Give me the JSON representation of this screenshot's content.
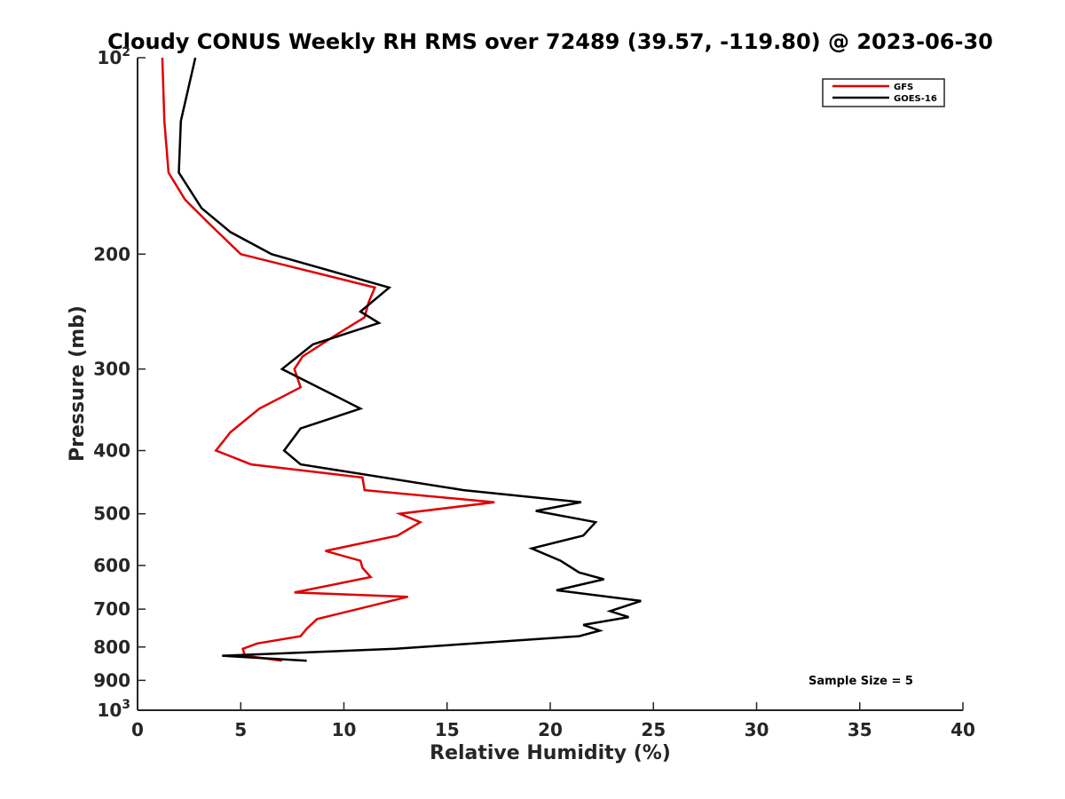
{
  "chart_data": {
    "type": "line",
    "title": "Cloudy CONUS Weekly RH RMS over 72489 (39.57, -119.80) @ 2023-06-30",
    "xlabel": "Relative Humidity (%)",
    "ylabel": "Pressure (mb)",
    "xlim": [
      0,
      40
    ],
    "ylim": [
      100,
      1000
    ],
    "yscale": "log",
    "y_reversed": true,
    "grid": false,
    "legend_position": "top-right",
    "x_ticks": [
      0,
      5,
      10,
      15,
      20,
      25,
      30,
      35,
      40
    ],
    "x_tick_labels": [
      "0",
      "5",
      "10",
      "15",
      "20",
      "25",
      "30",
      "35",
      "40"
    ],
    "y_ticks": [
      100,
      200,
      300,
      400,
      500,
      600,
      700,
      800,
      900,
      1000
    ],
    "y_tick_labels": [
      "10^2",
      "200",
      "300",
      "400",
      "500",
      "600",
      "700",
      "800",
      "900",
      "10^3"
    ],
    "annotation": "Sample Size = 5",
    "series": [
      {
        "name": "GFS",
        "color": "#e00000",
        "points": [
          [
            1.2,
            100
          ],
          [
            1.3,
            125
          ],
          [
            1.5,
            150
          ],
          [
            2.3,
            165
          ],
          [
            3.5,
            180
          ],
          [
            5.0,
            200
          ],
          [
            11.5,
            225
          ],
          [
            11.2,
            237
          ],
          [
            11.0,
            250
          ],
          [
            9.7,
            265
          ],
          [
            8.0,
            287
          ],
          [
            7.6,
            300
          ],
          [
            7.9,
            320
          ],
          [
            5.9,
            345
          ],
          [
            4.5,
            375
          ],
          [
            3.8,
            400
          ],
          [
            5.5,
            420
          ],
          [
            10.9,
            440
          ],
          [
            11.0,
            460
          ],
          [
            17.3,
            480
          ],
          [
            12.7,
            500
          ],
          [
            13.7,
            515
          ],
          [
            12.6,
            540
          ],
          [
            9.1,
            570
          ],
          [
            10.8,
            590
          ],
          [
            10.9,
            605
          ],
          [
            11.3,
            625
          ],
          [
            7.6,
            660
          ],
          [
            13.1,
            670
          ],
          [
            8.7,
            725
          ],
          [
            8.2,
            750
          ],
          [
            7.9,
            770
          ],
          [
            5.8,
            790
          ],
          [
            5.1,
            805
          ],
          [
            5.2,
            825
          ],
          [
            7.0,
            840
          ]
        ]
      },
      {
        "name": "GOES-16",
        "color": "#000000",
        "points": [
          [
            2.8,
            100
          ],
          [
            2.1,
            125
          ],
          [
            2.0,
            150
          ],
          [
            3.1,
            170
          ],
          [
            4.5,
            185
          ],
          [
            6.5,
            200
          ],
          [
            12.2,
            225
          ],
          [
            10.8,
            245
          ],
          [
            11.7,
            255
          ],
          [
            8.5,
            275
          ],
          [
            7.0,
            300
          ],
          [
            9.6,
            330
          ],
          [
            10.8,
            345
          ],
          [
            7.9,
            370
          ],
          [
            7.1,
            400
          ],
          [
            7.9,
            420
          ],
          [
            15.8,
            460
          ],
          [
            21.5,
            480
          ],
          [
            19.3,
            495
          ],
          [
            22.2,
            515
          ],
          [
            21.6,
            540
          ],
          [
            19.1,
            565
          ],
          [
            20.5,
            590
          ],
          [
            21.4,
            615
          ],
          [
            22.6,
            630
          ],
          [
            20.3,
            655
          ],
          [
            24.4,
            680
          ],
          [
            22.9,
            705
          ],
          [
            23.8,
            720
          ],
          [
            21.6,
            740
          ],
          [
            22.4,
            755
          ],
          [
            21.4,
            770
          ],
          [
            12.5,
            805
          ],
          [
            4.1,
            825
          ],
          [
            8.2,
            840
          ]
        ]
      }
    ]
  },
  "colors": {
    "axis": "#262626",
    "gfs": "#e00000",
    "goes16": "#000000"
  }
}
